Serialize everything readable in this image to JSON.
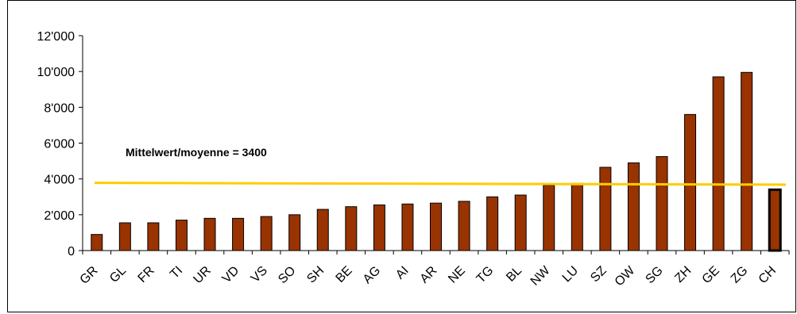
{
  "chart_data": {
    "type": "bar",
    "categories": [
      "GR",
      "GL",
      "FR",
      "TI",
      "UR",
      "VD",
      "VS",
      "SO",
      "SH",
      "BE",
      "AG",
      "AI",
      "AR",
      "NE",
      "TG",
      "BL",
      "NW",
      "LU",
      "SZ",
      "OW",
      "SG",
      "ZH",
      "GE",
      "ZG",
      "CH"
    ],
    "values": [
      900,
      1550,
      1550,
      1700,
      1800,
      1800,
      1900,
      2000,
      2300,
      2450,
      2550,
      2600,
      2650,
      2750,
      3000,
      3100,
      3650,
      3750,
      4650,
      4900,
      5250,
      7600,
      9700,
      9950,
      3400
    ],
    "highlight_category": "CH",
    "ylim": [
      0,
      12000
    ],
    "yticks": [
      0,
      2000,
      4000,
      6000,
      8000,
      10000,
      12000
    ],
    "ytick_labels": [
      "0",
      "2'000",
      "4'000",
      "6'000",
      "8'000",
      "10'000",
      "12'000"
    ],
    "grid": false,
    "reference_line": {
      "start_value": 3780,
      "end_value": 3680,
      "color": "#ffcc00"
    },
    "annotation": "Mittelwert/moyenne = 3400",
    "colors": {
      "bar": "#993300",
      "bar_border": "#000000",
      "highlight_border": "#000000",
      "axis": "#000000"
    }
  }
}
